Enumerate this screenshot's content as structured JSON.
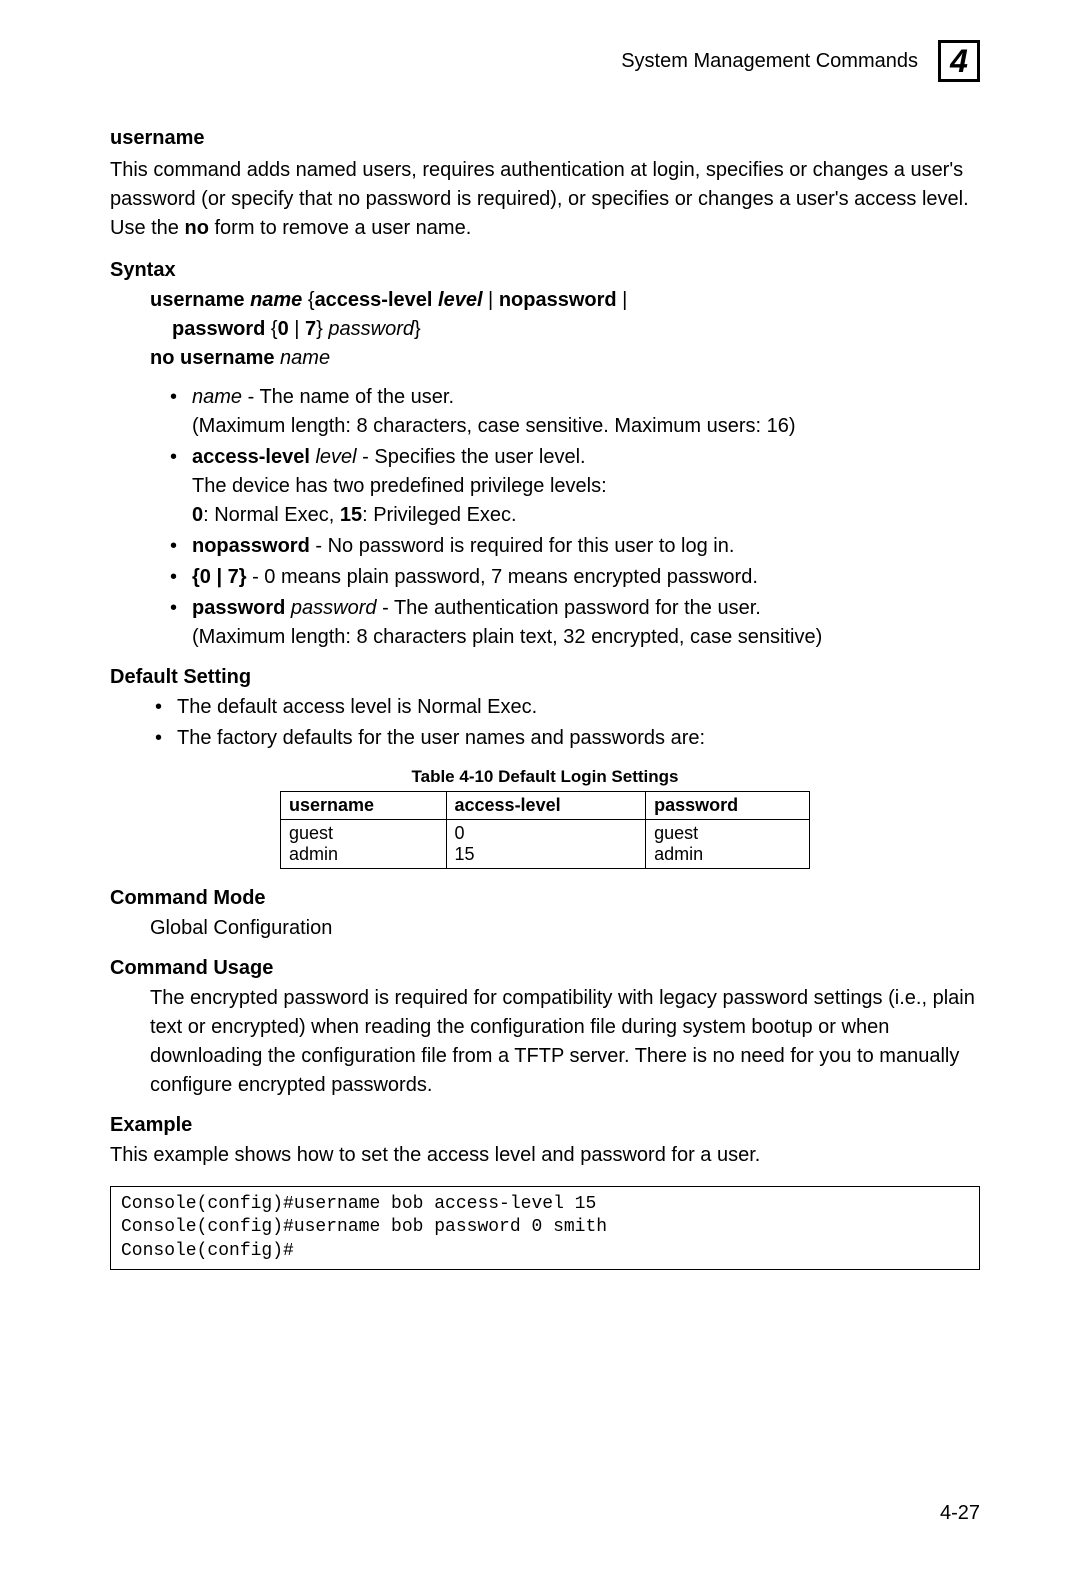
{
  "header": {
    "title": "System Management Commands",
    "chapter": "4"
  },
  "command": {
    "name": "username",
    "description": "This command adds named users, requires authentication at login, specifies or changes a user's password (or specify that no password is required), or specifies or changes a user's access level. Use the ",
    "description_bold": "no",
    "description_tail": " form to remove a user name."
  },
  "syntax": {
    "heading": "Syntax",
    "line1_a": "username ",
    "line1_b": "name",
    "line1_c": " {",
    "line1_d": "access-level",
    "line1_e": " ",
    "line1_f": "level",
    "line1_g": " | ",
    "line1_h": "nopassword",
    "line1_i": " |",
    "line2_a": "password",
    "line2_b": " {",
    "line2_c": "0",
    "line2_d": " | ",
    "line2_e": "7",
    "line2_f": "} ",
    "line2_g": "password",
    "line2_h": "}",
    "line3_a": "no username ",
    "line3_b": "name"
  },
  "params": {
    "p1_a": "name",
    "p1_b": " - The name of the user.",
    "p1_c": "(Maximum length: 8 characters, case sensitive. Maximum users: 16)",
    "p2_a": "access-level",
    "p2_b": " ",
    "p2_c": "level",
    "p2_d": " - Specifies the user level.",
    "p2_e": "The device has two predefined privilege levels:",
    "p2_f": "0",
    "p2_g": ": Normal Exec, ",
    "p2_h": "15",
    "p2_i": ": Privileged Exec.",
    "p3_a": "nopassword",
    "p3_b": " - No password is required for this user to log in.",
    "p4_a": "{0 | 7}",
    "p4_b": " - 0 means plain password, 7 means encrypted password.",
    "p5_a": "password",
    "p5_b": " ",
    "p5_c": "password",
    "p5_d": " - The authentication password for the user.",
    "p5_e": "(Maximum length: 8 characters plain text, 32 encrypted, case sensitive)"
  },
  "default_setting": {
    "heading": "Default Setting",
    "b1": "The default access level is Normal Exec.",
    "b2": "The factory defaults for the user names and passwords are:"
  },
  "table": {
    "caption": "Table 4-10  Default Login Settings",
    "cols": {
      "c1": "username",
      "c2": "access-level",
      "c3": "password"
    },
    "cell_r1c1a": "guest",
    "cell_r1c1b": "admin",
    "cell_r1c2a": "0",
    "cell_r1c2b": "15",
    "cell_r1c3a": "guest",
    "cell_r1c3b": "admin"
  },
  "command_mode": {
    "heading": "Command Mode",
    "text": "Global Configuration"
  },
  "command_usage": {
    "heading": "Command Usage",
    "text": "The encrypted password is required for compatibility with legacy password settings (i.e., plain text or encrypted) when reading the configuration file during system bootup or when downloading the configuration file from a TFTP server. There is no need for you to manually configure encrypted passwords."
  },
  "example": {
    "heading": "Example",
    "intro": "This example shows how to set the access level and password for a user.",
    "code": "Console(config)#username bob access-level 15\nConsole(config)#username bob password 0 smith\nConsole(config)#"
  },
  "page_number": "4-27"
}
